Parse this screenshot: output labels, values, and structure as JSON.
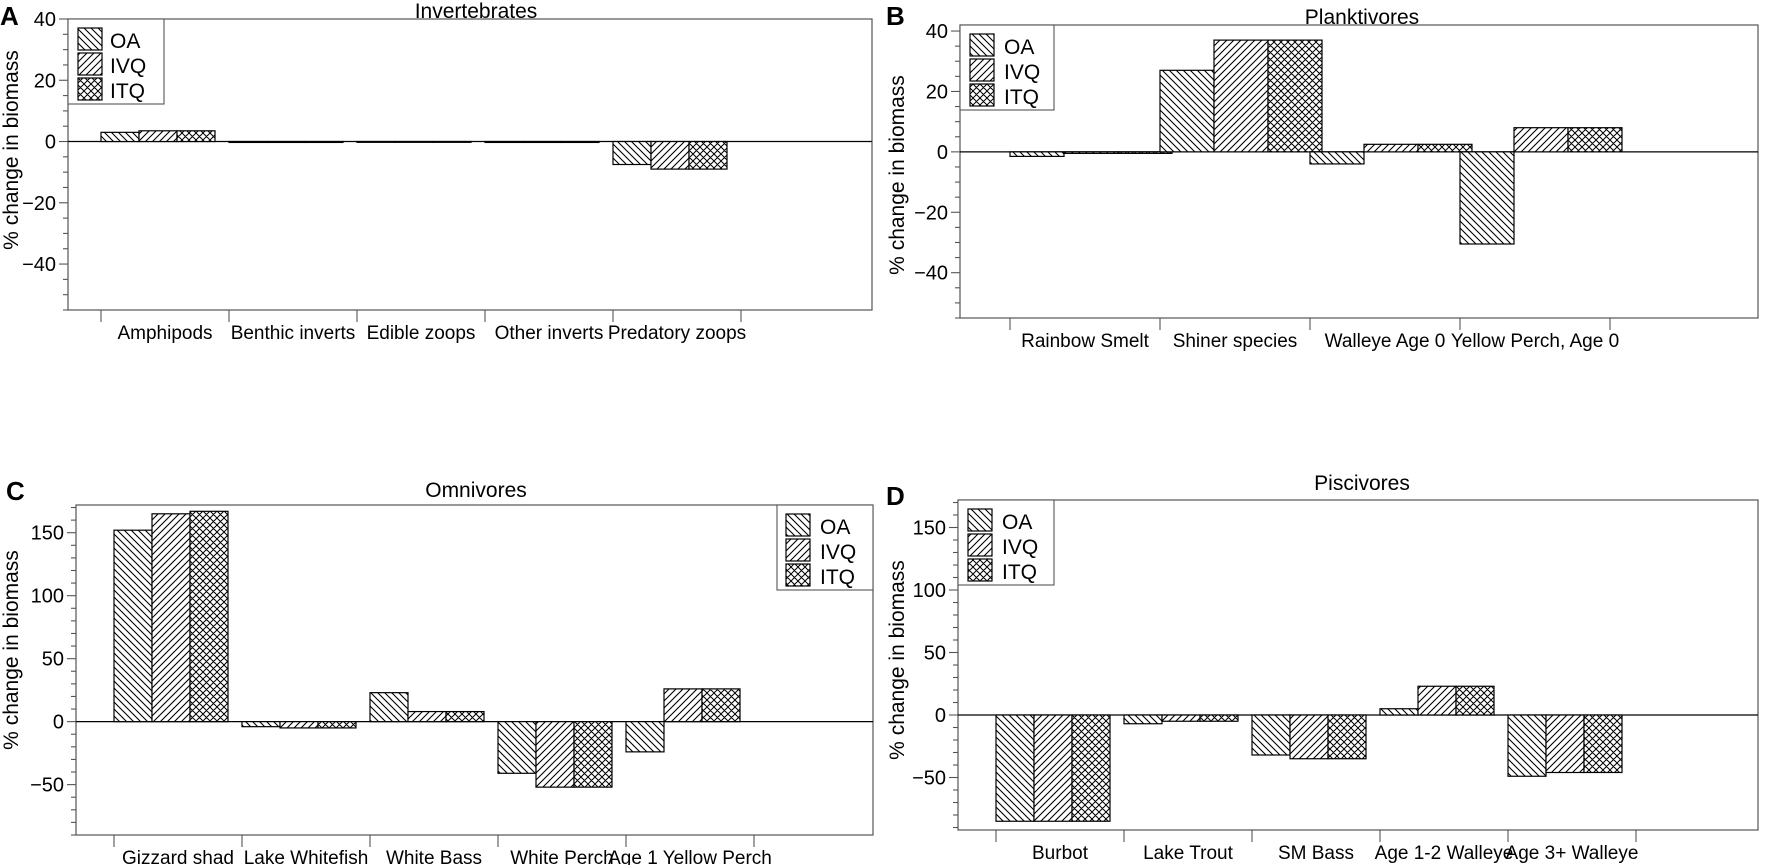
{
  "chart_data": [
    {
      "panel_label": "A",
      "type": "bar",
      "title": "Invertebrates",
      "ylabel": "% change in biomass",
      "xlabel": "",
      "ylim": [
        -55,
        40
      ],
      "yticks": [
        40,
        20,
        0,
        -20,
        -40
      ],
      "minor_step": 5,
      "legend": "top-left",
      "categories": [
        "Amphipods",
        "Benthic inverts",
        "Edible zoops",
        "Other inverts",
        "Predatory zoops"
      ],
      "series": [
        {
          "name": "OA",
          "pattern": "oa",
          "values": [
            3,
            -0.3,
            -0.2,
            -0.3,
            -7.5
          ]
        },
        {
          "name": "IVQ",
          "pattern": "ivq",
          "values": [
            3.5,
            -0.3,
            -0.2,
            -0.3,
            -9
          ]
        },
        {
          "name": "ITQ",
          "pattern": "itq",
          "values": [
            3.5,
            -0.3,
            -0.2,
            -0.3,
            -9
          ]
        }
      ]
    },
    {
      "panel_label": "B",
      "type": "bar",
      "title": "Planktivores",
      "ylabel": "% change in biomass",
      "xlabel": "",
      "ylim": [
        -55,
        42
      ],
      "yticks": [
        40,
        20,
        0,
        -20,
        -40
      ],
      "minor_step": 5,
      "legend": "top-left",
      "categories": [
        "Rainbow Smelt",
        "Shiner species",
        "Walleye Age 0",
        "Yellow Perch, Age 0"
      ],
      "series": [
        {
          "name": "OA",
          "pattern": "oa",
          "values": [
            -1.5,
            27,
            -4,
            -30.5
          ]
        },
        {
          "name": "IVQ",
          "pattern": "ivq",
          "values": [
            -0.5,
            37,
            2.5,
            8
          ]
        },
        {
          "name": "ITQ",
          "pattern": "itq",
          "values": [
            -0.5,
            37,
            2.5,
            8
          ]
        }
      ]
    },
    {
      "panel_label": "C",
      "type": "bar",
      "title": "Omnivores",
      "ylabel": "% change in biomass",
      "xlabel": "",
      "ylim": [
        -90,
        172
      ],
      "yticks": [
        150,
        100,
        50,
        0,
        -50
      ],
      "minor_step": 10,
      "legend": "top-right",
      "categories": [
        "Gizzard shad",
        "Lake Whitefish",
        "White Bass",
        "White Perch",
        "Age 1 Yellow Perch"
      ],
      "series": [
        {
          "name": "OA",
          "pattern": "oa",
          "values": [
            152,
            -4,
            23,
            -41,
            -24
          ]
        },
        {
          "name": "IVQ",
          "pattern": "ivq",
          "values": [
            165,
            -5,
            8,
            -52,
            26
          ]
        },
        {
          "name": "ITQ",
          "pattern": "itq",
          "values": [
            167,
            -5,
            8,
            -52,
            26
          ]
        }
      ]
    },
    {
      "panel_label": "D",
      "type": "bar",
      "title": "Piscivores",
      "ylabel": "% change in biomass",
      "xlabel": "",
      "ylim": [
        -92,
        172
      ],
      "yticks": [
        150,
        100,
        50,
        0,
        -50
      ],
      "minor_step": 10,
      "legend": "top-left",
      "categories": [
        "Burbot",
        "Lake Trout",
        "SM Bass",
        "Age 1-2 Walleye",
        "Age 3+ Walleye"
      ],
      "series": [
        {
          "name": "OA",
          "pattern": "oa",
          "values": [
            -85,
            -7,
            -32,
            5,
            -49
          ]
        },
        {
          "name": "IVQ",
          "pattern": "ivq",
          "values": [
            -85,
            -5,
            -35,
            23,
            -46
          ]
        },
        {
          "name": "ITQ",
          "pattern": "itq",
          "values": [
            -85,
            -5,
            -35,
            23,
            -46
          ]
        }
      ]
    }
  ]
}
